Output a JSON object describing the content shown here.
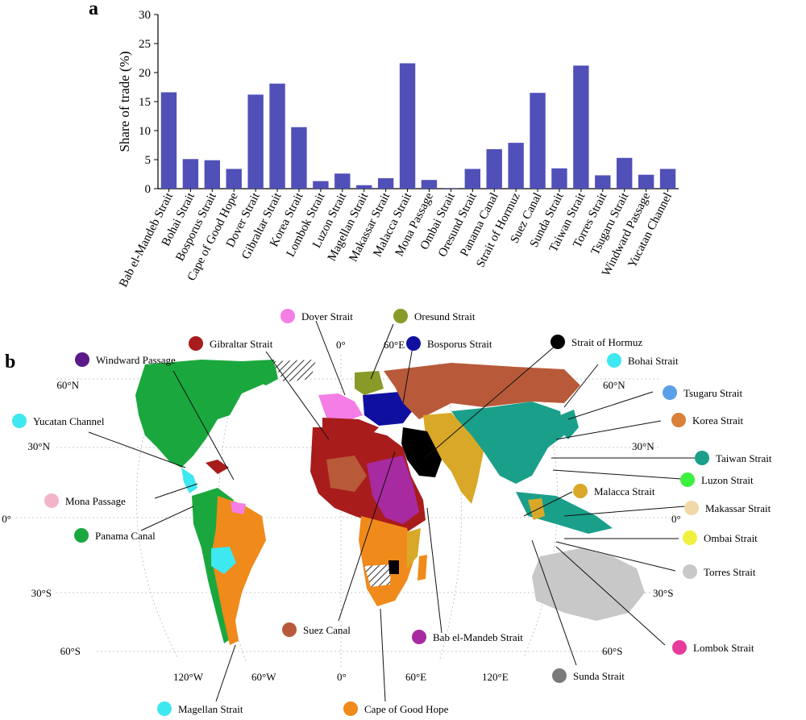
{
  "panel_a_label": "a",
  "panel_b_label": "b",
  "chart_data": {
    "type": "bar",
    "title": "",
    "xlabel": "",
    "ylabel": "Share of trade (%)",
    "ylim": [
      0,
      30
    ],
    "yticks": [
      0,
      5,
      10,
      15,
      20,
      25,
      30
    ],
    "bar_color": "#5050b8",
    "categories": [
      "Bab el-Mandeb Strait",
      "Bohai Strait",
      "Bosporus Strait",
      "Cape of Good Hope",
      "Dover Strait",
      "Gibraltar Strait",
      "Korea Strait",
      "Lombok Strait",
      "Luzon Strait",
      "Magellan Strait",
      "Makassar Strait",
      "Malacca Strait",
      "Mona Passage",
      "Ombai Strait",
      "Oresund Strait",
      "Panama Canal",
      "Strait of Hormuz",
      "Suez Canal",
      "Sunda Strait",
      "Taiwan Strait",
      "Torres Strait",
      "Tsugaru Strait",
      "Windward Passage",
      "Yucatan Channel"
    ],
    "values": [
      16.6,
      5.1,
      4.9,
      3.4,
      16.2,
      18.1,
      10.6,
      1.3,
      2.6,
      0.6,
      1.8,
      21.6,
      1.5,
      0.1,
      3.4,
      6.8,
      7.9,
      16.5,
      3.5,
      21.2,
      2.3,
      5.3,
      2.4,
      3.4
    ]
  },
  "map": {
    "lat_labels_left": [
      "60°N",
      "30°N",
      "0°",
      "30°S",
      "60°S"
    ],
    "lat_labels_right": [
      "60°N",
      "30°N",
      "0°",
      "30°S",
      "60°S"
    ],
    "lon_labels_top": [
      "0°",
      "60°E"
    ],
    "lon_labels_bottom": [
      "120°W",
      "60°W",
      "0°",
      "60°E",
      "120°E"
    ],
    "legend": [
      {
        "name": "Dover Strait",
        "color": "#f47ee6"
      },
      {
        "name": "Oresund Strait",
        "color": "#8a9a28"
      },
      {
        "name": "Gibraltar Strait",
        "color": "#a81c1c"
      },
      {
        "name": "Bosporus Strait",
        "color": "#1010a0"
      },
      {
        "name": "Strait of Hormuz",
        "color": "#000000"
      },
      {
        "name": "Bohai Strait",
        "color": "#3ee8f0"
      },
      {
        "name": "Windward Passage",
        "color": "#5a1a8a"
      },
      {
        "name": "Tsugaru Strait",
        "color": "#5aa0e8"
      },
      {
        "name": "Yucatan Channel",
        "color": "#3ee8f0"
      },
      {
        "name": "Korea Strait",
        "color": "#d9803a"
      },
      {
        "name": "Taiwan Strait",
        "color": "#1aa08a"
      },
      {
        "name": "Luzon Strait",
        "color": "#3ef03e"
      },
      {
        "name": "Mona Passage",
        "color": "#f4b4c8"
      },
      {
        "name": "Malacca Strait",
        "color": "#d9a828"
      },
      {
        "name": "Makassar Strait",
        "color": "#f0d8a8"
      },
      {
        "name": "Panama Canal",
        "color": "#1aa83e"
      },
      {
        "name": "Ombai Strait",
        "color": "#f0f03e"
      },
      {
        "name": "Torres Strait",
        "color": "#c8c8c8"
      },
      {
        "name": "Suez Canal",
        "color": "#b85a3a"
      },
      {
        "name": "Bab el-Mandeb Strait",
        "color": "#a82aa0"
      },
      {
        "name": "Lombok Strait",
        "color": "#e83a9a"
      },
      {
        "name": "Sunda Strait",
        "color": "#7a7a7a"
      },
      {
        "name": "Magellan Strait",
        "color": "#3ee8f0"
      },
      {
        "name": "Cape of Good Hope",
        "color": "#f08a1a"
      }
    ]
  }
}
